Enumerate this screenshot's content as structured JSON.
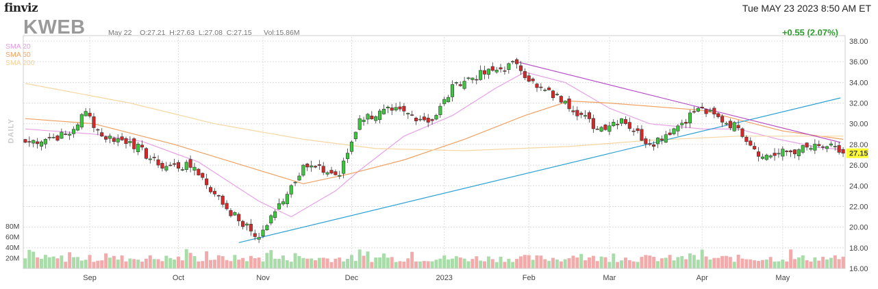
{
  "header": {
    "logo": "finviz",
    "datetime": "Tue MAY 23 2023 8:50 AM ET",
    "ticker": "KWEB",
    "ohlc": "May 22    O:27.21  H:27.63  L:27.08  C:27.15      Vol:15.86M",
    "change": "+0.55 (2.07%)"
  },
  "legend": {
    "sma20": "SMA 20",
    "sma50": "SMA 50",
    "sma200": "SMA 200",
    "period": "DAILY"
  },
  "colors": {
    "up": "#3cc83c",
    "down": "#d62828",
    "sma20": "#e7a0e7",
    "sma50": "#f0a060",
    "sma200": "#f7d6a0",
    "trend_blue": "#2a9fd6",
    "trend_purple": "#b64fc8",
    "vol_up": "#a8dca8",
    "vol_down": "#f2aaaa",
    "last_price_bg": "#ffff33"
  },
  "chart_data": {
    "type": "candlestick",
    "ylim": [
      16,
      38
    ],
    "yticks": [
      16,
      18,
      20,
      22,
      24,
      26,
      28,
      30,
      32,
      34,
      36,
      38
    ],
    "ytick_labels": [
      "16.00",
      "18.00",
      "20.00",
      "22.00",
      "24.00",
      "26.00",
      "28.00",
      "30.00",
      "32.00",
      "34.00",
      "36.00",
      "38.00"
    ],
    "x_month_labels": [
      {
        "label": "Sep",
        "date": "2022-09-01"
      },
      {
        "label": "Oct",
        "date": "2022-10-03"
      },
      {
        "label": "Nov",
        "date": "2022-11-01"
      },
      {
        "label": "Dec",
        "date": "2022-12-01"
      },
      {
        "label": "2023",
        "date": "2023-01-03"
      },
      {
        "label": "Feb",
        "date": "2023-02-01"
      },
      {
        "label": "Mar",
        "date": "2023-03-01"
      },
      {
        "label": "Apr",
        "date": "2023-04-03"
      },
      {
        "label": "May",
        "date": "2023-05-01"
      }
    ],
    "last_price": "27.15",
    "volume_ticks": [
      "20M",
      "40M",
      "60M",
      "80M"
    ],
    "volume_max_millions": 80,
    "close_anchors": [
      {
        "date": "2022-08-10",
        "close": 28.2
      },
      {
        "date": "2022-08-20",
        "close": 28.7
      },
      {
        "date": "2022-08-25",
        "close": 29.0
      },
      {
        "date": "2022-08-31",
        "close": 31.2
      },
      {
        "date": "2022-09-06",
        "close": 28.8
      },
      {
        "date": "2022-09-15",
        "close": 28.3
      },
      {
        "date": "2022-09-26",
        "close": 26.0
      },
      {
        "date": "2022-10-07",
        "close": 25.8
      },
      {
        "date": "2022-10-14",
        "close": 23.2
      },
      {
        "date": "2022-10-24",
        "close": 20.6
      },
      {
        "date": "2022-10-31",
        "close": 19.0
      },
      {
        "date": "2022-11-04",
        "close": 21.5
      },
      {
        "date": "2022-11-15",
        "close": 26.0
      },
      {
        "date": "2022-11-28",
        "close": 25.0
      },
      {
        "date": "2022-12-05",
        "close": 30.5
      },
      {
        "date": "2022-12-15",
        "close": 31.3
      },
      {
        "date": "2022-12-29",
        "close": 30.3
      },
      {
        "date": "2023-01-06",
        "close": 34.0
      },
      {
        "date": "2023-01-20",
        "close": 35.2
      },
      {
        "date": "2023-01-27",
        "close": 35.8
      },
      {
        "date": "2023-02-03",
        "close": 33.5
      },
      {
        "date": "2023-02-14",
        "close": 32.2
      },
      {
        "date": "2023-02-24",
        "close": 29.5
      },
      {
        "date": "2023-03-06",
        "close": 30.5
      },
      {
        "date": "2023-03-15",
        "close": 28.0
      },
      {
        "date": "2023-03-24",
        "close": 29.8
      },
      {
        "date": "2023-03-31",
        "close": 31.5
      },
      {
        "date": "2023-04-14",
        "close": 29.6
      },
      {
        "date": "2023-04-24",
        "close": 26.8
      },
      {
        "date": "2023-05-05",
        "close": 27.5
      },
      {
        "date": "2023-05-16",
        "close": 27.8
      },
      {
        "date": "2023-05-22",
        "close": 27.15
      }
    ],
    "sma20_path": [
      {
        "date": "2022-08-10",
        "value": 29.5
      },
      {
        "date": "2022-09-02",
        "value": 29.0
      },
      {
        "date": "2022-09-20",
        "value": 28.3
      },
      {
        "date": "2022-10-10",
        "value": 26.3
      },
      {
        "date": "2022-10-31",
        "value": 22.5
      },
      {
        "date": "2022-11-10",
        "value": 21.0
      },
      {
        "date": "2022-11-25",
        "value": 23.5
      },
      {
        "date": "2022-12-05",
        "value": 25.5
      },
      {
        "date": "2022-12-20",
        "value": 28.8
      },
      {
        "date": "2023-01-05",
        "value": 30.8
      },
      {
        "date": "2023-01-20",
        "value": 33.5
      },
      {
        "date": "2023-01-31",
        "value": 35.0
      },
      {
        "date": "2023-02-14",
        "value": 34.0
      },
      {
        "date": "2023-03-01",
        "value": 31.5
      },
      {
        "date": "2023-03-15",
        "value": 30.0
      },
      {
        "date": "2023-04-03",
        "value": 29.5
      },
      {
        "date": "2023-04-14",
        "value": 29.5
      },
      {
        "date": "2023-04-28",
        "value": 28.5
      },
      {
        "date": "2023-05-12",
        "value": 27.7
      },
      {
        "date": "2023-05-22",
        "value": 27.5
      }
    ],
    "sma50_path": [
      {
        "date": "2022-08-10",
        "value": 30.5
      },
      {
        "date": "2022-09-02",
        "value": 30.0
      },
      {
        "date": "2022-09-30",
        "value": 28.0
      },
      {
        "date": "2022-10-31",
        "value": 25.5
      },
      {
        "date": "2022-11-15",
        "value": 24.2
      },
      {
        "date": "2022-12-01",
        "value": 25.2
      },
      {
        "date": "2022-12-20",
        "value": 26.5
      },
      {
        "date": "2023-01-10",
        "value": 28.5
      },
      {
        "date": "2023-01-31",
        "value": 30.8
      },
      {
        "date": "2023-02-15",
        "value": 32.2
      },
      {
        "date": "2023-03-01",
        "value": 32.0
      },
      {
        "date": "2023-04-03",
        "value": 31.3
      },
      {
        "date": "2023-05-01",
        "value": 29.3
      },
      {
        "date": "2023-05-22",
        "value": 28.5
      }
    ],
    "sma200_path": [
      {
        "date": "2022-08-10",
        "value": 33.9
      },
      {
        "date": "2022-09-15",
        "value": 32.0
      },
      {
        "date": "2022-10-15",
        "value": 30.0
      },
      {
        "date": "2022-11-15",
        "value": 28.5
      },
      {
        "date": "2022-12-10",
        "value": 27.6
      },
      {
        "date": "2023-01-10",
        "value": 27.4
      },
      {
        "date": "2023-02-15",
        "value": 27.8
      },
      {
        "date": "2023-03-15",
        "value": 28.4
      },
      {
        "date": "2023-04-15",
        "value": 28.8
      },
      {
        "date": "2023-05-22",
        "value": 28.8
      }
    ],
    "trendlines": [
      {
        "name": "support",
        "color": "#2a9fd6",
        "from": {
          "date": "2022-10-24",
          "value": 18.5
        },
        "to": {
          "date": "2023-05-22",
          "value": 32.5
        }
      },
      {
        "name": "resistance",
        "color": "#b64fc8",
        "from": {
          "date": "2023-01-27",
          "value": 36.0
        },
        "to": {
          "date": "2023-05-22",
          "value": 28.2
        }
      }
    ]
  }
}
